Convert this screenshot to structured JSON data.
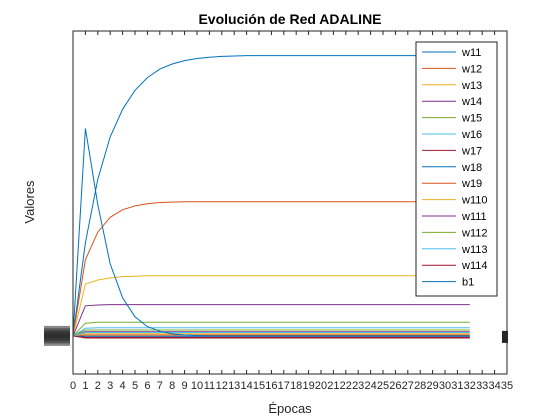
{
  "chart_data": {
    "type": "line",
    "title": "Evolución de Red ADALINE",
    "xlabel": "Épocas",
    "ylabel": "Valores",
    "xlim": [
      0,
      35
    ],
    "ylim": [
      -0.9,
      7.2
    ],
    "xticks": [
      0,
      1,
      2,
      3,
      4,
      5,
      6,
      7,
      8,
      9,
      10,
      11,
      12,
      13,
      14,
      15,
      16,
      17,
      18,
      19,
      20,
      21,
      22,
      23,
      24,
      25,
      26,
      27,
      28,
      29,
      30,
      31,
      32,
      33,
      34,
      35
    ],
    "yticks_note": "y tick labels overlap and are unreadable",
    "legend_position": "top-right",
    "x": [
      0,
      1,
      2,
      3,
      4,
      5,
      6,
      7,
      8,
      9,
      10,
      11,
      12,
      13,
      14,
      15,
      16,
      17,
      18,
      19,
      20,
      21,
      22,
      23,
      24,
      25,
      26,
      27,
      28,
      29,
      30,
      31,
      32
    ],
    "series": [
      {
        "name": "w11",
        "color": "#0072BD",
        "values": [
          0,
          2.2,
          3.7,
          4.7,
          5.35,
          5.8,
          6.1,
          6.3,
          6.42,
          6.5,
          6.55,
          6.58,
          6.6,
          6.61,
          6.62,
          6.62,
          6.62,
          6.62,
          6.62,
          6.62,
          6.62,
          6.62,
          6.62,
          6.62,
          6.62,
          6.62,
          6.62,
          6.62,
          6.62,
          6.62,
          6.62,
          6.62,
          6.62
        ]
      },
      {
        "name": "w12",
        "color": "#D95319",
        "values": [
          0,
          1.8,
          2.45,
          2.8,
          2.98,
          3.07,
          3.12,
          3.15,
          3.16,
          3.17,
          3.17,
          3.17,
          3.17,
          3.17,
          3.17,
          3.17,
          3.17,
          3.17,
          3.17,
          3.17,
          3.17,
          3.17,
          3.17,
          3.17,
          3.17,
          3.17,
          3.17,
          3.17,
          3.17,
          3.17,
          3.17,
          3.17,
          3.17
        ]
      },
      {
        "name": "w13",
        "color": "#EDB120",
        "values": [
          0,
          1.22,
          1.32,
          1.37,
          1.4,
          1.41,
          1.42,
          1.42,
          1.42,
          1.42,
          1.42,
          1.42,
          1.42,
          1.42,
          1.42,
          1.42,
          1.42,
          1.42,
          1.42,
          1.42,
          1.42,
          1.42,
          1.42,
          1.42,
          1.42,
          1.42,
          1.42,
          1.42,
          1.42,
          1.42,
          1.42,
          1.42,
          1.42
        ]
      },
      {
        "name": "w14",
        "color": "#7E2F8E",
        "values": [
          0,
          0.71,
          0.73,
          0.74,
          0.74,
          0.74,
          0.74,
          0.74,
          0.74,
          0.74,
          0.74,
          0.74,
          0.74,
          0.74,
          0.74,
          0.74,
          0.74,
          0.74,
          0.74,
          0.74,
          0.74,
          0.74,
          0.74,
          0.74,
          0.74,
          0.74,
          0.74,
          0.74,
          0.74,
          0.74,
          0.74,
          0.74,
          0.74
        ]
      },
      {
        "name": "w15",
        "color": "#77AC30",
        "values": [
          0,
          0.3,
          0.32,
          0.32,
          0.32,
          0.32,
          0.32,
          0.32,
          0.32,
          0.32,
          0.32,
          0.32,
          0.32,
          0.32,
          0.32,
          0.32,
          0.32,
          0.32,
          0.32,
          0.32,
          0.32,
          0.32,
          0.32,
          0.32,
          0.32,
          0.32,
          0.32,
          0.32,
          0.32,
          0.32,
          0.32,
          0.32,
          0.32
        ]
      },
      {
        "name": "w16",
        "color": "#4DBEEE",
        "values": [
          0,
          0.18,
          0.19,
          0.19,
          0.19,
          0.19,
          0.19,
          0.19,
          0.19,
          0.19,
          0.19,
          0.19,
          0.19,
          0.19,
          0.19,
          0.19,
          0.19,
          0.19,
          0.19,
          0.19,
          0.19,
          0.19,
          0.19,
          0.19,
          0.19,
          0.19,
          0.19,
          0.19,
          0.19,
          0.19,
          0.19,
          0.19,
          0.19
        ]
      },
      {
        "name": "w17",
        "color": "#A2142F",
        "values": [
          0,
          -0.03,
          -0.03,
          -0.03,
          -0.03,
          -0.03,
          -0.03,
          -0.03,
          -0.03,
          -0.03,
          -0.03,
          -0.03,
          -0.03,
          -0.03,
          -0.03,
          -0.03,
          -0.03,
          -0.03,
          -0.03,
          -0.03,
          -0.03,
          -0.03,
          -0.03,
          -0.03,
          -0.03,
          -0.03,
          -0.03,
          -0.03,
          -0.03,
          -0.03,
          -0.03,
          -0.03,
          -0.03
        ]
      },
      {
        "name": "w18",
        "color": "#0072BD",
        "values": [
          0,
          -0.01,
          -0.01,
          -0.01,
          -0.01,
          -0.01,
          -0.01,
          -0.01,
          -0.01,
          -0.01,
          -0.01,
          -0.01,
          -0.01,
          -0.01,
          -0.01,
          -0.01,
          -0.01,
          -0.01,
          -0.01,
          -0.01,
          -0.01,
          -0.01,
          -0.01,
          -0.01,
          -0.01,
          -0.01,
          -0.01,
          -0.01,
          -0.01,
          -0.01,
          -0.01,
          -0.01,
          -0.01
        ]
      },
      {
        "name": "w19",
        "color": "#D95319",
        "values": [
          0,
          0.02,
          0.02,
          0.02,
          0.02,
          0.02,
          0.02,
          0.02,
          0.02,
          0.02,
          0.02,
          0.02,
          0.02,
          0.02,
          0.02,
          0.02,
          0.02,
          0.02,
          0.02,
          0.02,
          0.02,
          0.02,
          0.02,
          0.02,
          0.02,
          0.02,
          0.02,
          0.02,
          0.02,
          0.02,
          0.02,
          0.02,
          0.02
        ]
      },
      {
        "name": "w110",
        "color": "#EDB120",
        "values": [
          0,
          0.05,
          0.05,
          0.05,
          0.05,
          0.05,
          0.05,
          0.05,
          0.05,
          0.05,
          0.05,
          0.05,
          0.05,
          0.05,
          0.05,
          0.05,
          0.05,
          0.05,
          0.05,
          0.05,
          0.05,
          0.05,
          0.05,
          0.05,
          0.05,
          0.05,
          0.05,
          0.05,
          0.05,
          0.05,
          0.05,
          0.05,
          0.05
        ]
      },
      {
        "name": "w111",
        "color": "#7E2F8E",
        "values": [
          0,
          0.1,
          0.1,
          0.1,
          0.1,
          0.1,
          0.1,
          0.1,
          0.1,
          0.1,
          0.1,
          0.1,
          0.1,
          0.1,
          0.1,
          0.1,
          0.1,
          0.1,
          0.1,
          0.1,
          0.1,
          0.1,
          0.1,
          0.1,
          0.1,
          0.1,
          0.1,
          0.1,
          0.1,
          0.1,
          0.1,
          0.1,
          0.1
        ]
      },
      {
        "name": "w112",
        "color": "#77AC30",
        "values": [
          0,
          0.14,
          0.14,
          0.14,
          0.14,
          0.14,
          0.14,
          0.14,
          0.14,
          0.14,
          0.14,
          0.14,
          0.14,
          0.14,
          0.14,
          0.14,
          0.14,
          0.14,
          0.14,
          0.14,
          0.14,
          0.14,
          0.14,
          0.14,
          0.14,
          0.14,
          0.14,
          0.14,
          0.14,
          0.14,
          0.14,
          0.14,
          0.14
        ]
      },
      {
        "name": "w113",
        "color": "#4DBEEE",
        "values": [
          0,
          0.08,
          0.08,
          0.08,
          0.08,
          0.08,
          0.08,
          0.08,
          0.08,
          0.08,
          0.08,
          0.08,
          0.08,
          0.08,
          0.08,
          0.08,
          0.08,
          0.08,
          0.08,
          0.08,
          0.08,
          0.08,
          0.08,
          0.08,
          0.08,
          0.08,
          0.08,
          0.08,
          0.08,
          0.08,
          0.08,
          0.08,
          0.08
        ]
      },
      {
        "name": "w114",
        "color": "#A2142F",
        "values": [
          0,
          -0.05,
          -0.05,
          -0.05,
          -0.05,
          -0.05,
          -0.05,
          -0.05,
          -0.05,
          -0.05,
          -0.05,
          -0.05,
          -0.05,
          -0.05,
          -0.05,
          -0.05,
          -0.05,
          -0.05,
          -0.05,
          -0.05,
          -0.05,
          -0.05,
          -0.05,
          -0.05,
          -0.05,
          -0.05,
          -0.05,
          -0.05,
          -0.05,
          -0.05,
          -0.05,
          -0.05,
          -0.05
        ]
      },
      {
        "name": "b1",
        "color": "#0072BD",
        "values": [
          0,
          4.9,
          3.1,
          1.7,
          0.9,
          0.45,
          0.22,
          0.11,
          0.05,
          0.02,
          0.01,
          0.0,
          0.0,
          0.0,
          0.0,
          0.0,
          0.0,
          0.0,
          0.0,
          0.0,
          0.0,
          0.0,
          0.0,
          0.0,
          0.0,
          0.0,
          0.0,
          0.0,
          0.0,
          0.0,
          0.0,
          0.0,
          0.0
        ]
      }
    ]
  }
}
